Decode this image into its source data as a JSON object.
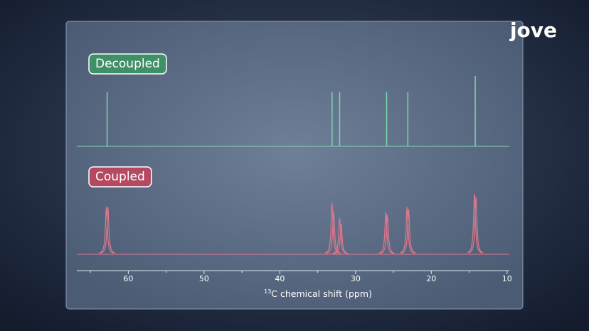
{
  "brand": "jove",
  "chart_data": {
    "type": "spectrum",
    "xlabel_sup": "13",
    "xlabel": "C chemical shift (ppm)",
    "xlim": [
      66.8,
      9.7
    ],
    "xticks": [
      60,
      50,
      40,
      30,
      20,
      10
    ],
    "xminor": [
      65,
      55,
      45,
      35,
      25,
      15
    ],
    "ylim": [
      0,
      1
    ],
    "series": [
      {
        "name": "Decoupled",
        "color": "#7fd6a8",
        "label_color": "#3f8f68",
        "style": "lines",
        "shifts": [
          62.8,
          33.1,
          32.1,
          25.9,
          23.1,
          14.2
        ],
        "values": [
          0.77,
          0.77,
          0.77,
          0.77,
          0.77,
          1.0
        ]
      },
      {
        "name": "Coupled",
        "color": "#e0788c",
        "label_color": "#b44a62",
        "style": "peaks",
        "shifts": [
          62.9,
          62.7,
          33.1,
          32.9,
          32.1,
          31.9,
          26.0,
          25.8,
          23.2,
          23.0,
          14.3,
          14.1
        ],
        "values": [
          0.78,
          0.78,
          0.85,
          0.7,
          0.6,
          0.5,
          0.7,
          0.65,
          0.78,
          0.75,
          1.0,
          0.95
        ]
      }
    ]
  }
}
